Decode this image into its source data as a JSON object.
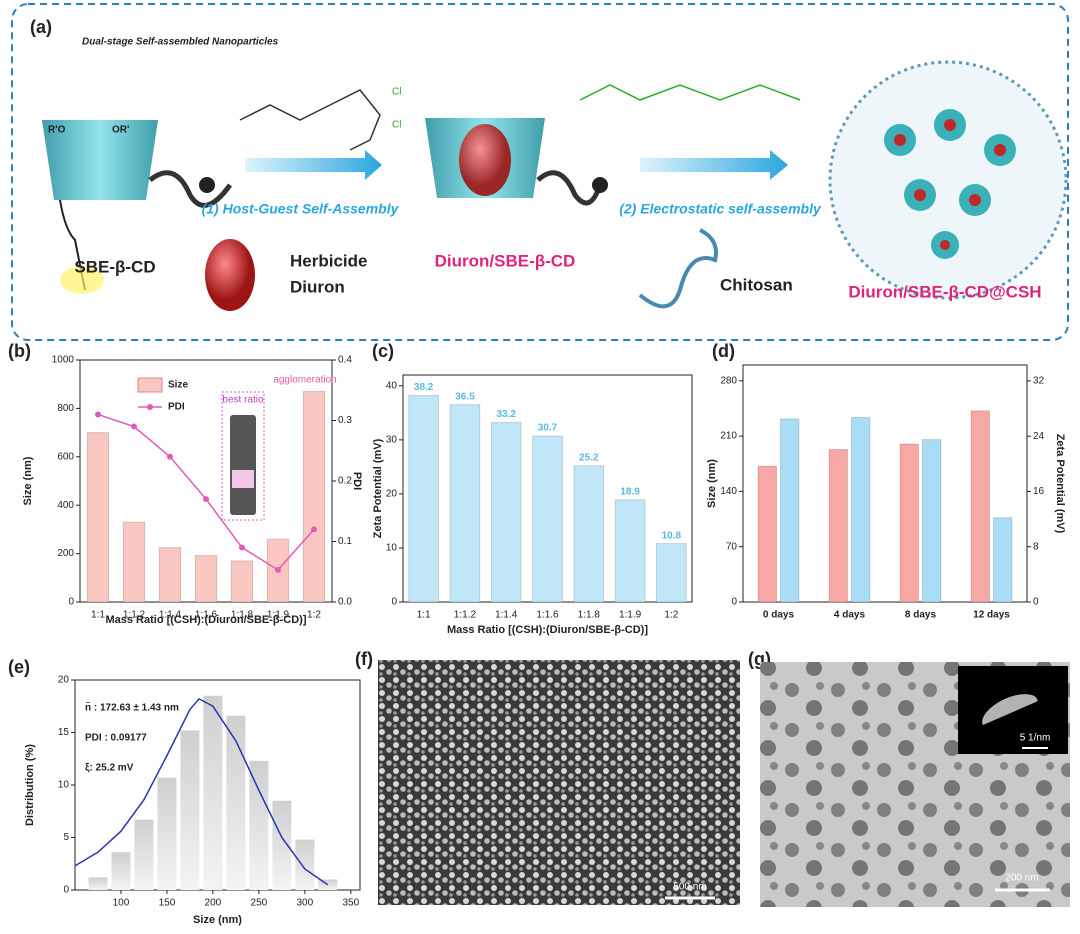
{
  "figure": {
    "panel_a": {
      "label": "(a)",
      "title": "Dual-stage Self-assembled Nanoparticles",
      "step1": "(1) Host-Guest Self-Assembly",
      "step2": "(2) Electrostatic self-assembly",
      "host": "SBE-β-CD",
      "guest_line1": "Herbicide",
      "guest_line2": "Diuron",
      "complex": "Diuron/SBE-β-CD",
      "polymer": "Chitosan",
      "product": "Diuron/SBE-β-CD@CSH",
      "cl_top": "Cl",
      "cl_bottom": "Cl",
      "ro_left": "R'O",
      "ro_right": "OR'"
    },
    "panel_f": {
      "label": "(f)",
      "scale": "500 nm"
    },
    "panel_g": {
      "label": "(g)",
      "scale": "200 nm",
      "inset_scale": "5 1/nm"
    }
  },
  "chart_data": [
    {
      "type": "bar_line",
      "label": "(b)",
      "xlabel": "Mass Ratio [(CSH):(Diuron/SBE-β-CD)]",
      "ylabel": "Size (nm)",
      "y2label": "PDI",
      "categories": [
        "1:1",
        "1:1.2",
        "1:1.4",
        "1:1.6",
        "1:1.8",
        "1:1.9",
        "1:2"
      ],
      "series": [
        {
          "name": "Size",
          "color": "#f9c6c2",
          "values": [
            700,
            330,
            225,
            192,
            170,
            260,
            870
          ]
        },
        {
          "name": "PDI",
          "color": "#e05cb8",
          "axis": "y2",
          "values": [
            0.31,
            0.29,
            0.24,
            0.17,
            0.09,
            0.053,
            0.12
          ]
        }
      ],
      "ylim": [
        0,
        1000
      ],
      "yticks": [
        0,
        200,
        400,
        600,
        800,
        1000
      ],
      "y2lim": [
        0,
        0.4
      ],
      "y2ticks": [
        {
          "value": 0,
          "label": "0.0"
        },
        0.1,
        0.2,
        0.3,
        0.4
      ],
      "legend": "upper left",
      "annotations": [
        "best ratio",
        "agglomeration"
      ]
    },
    {
      "type": "bar",
      "label": "(c)",
      "xlabel": "Mass Ratio [(CSH):(Diuron/SBE-β-CD)]",
      "ylabel": "Zeta Potential (mV)",
      "categories": [
        "1:1",
        "1:1.2",
        "1:1.4",
        "1:1.6",
        "1:1.8",
        "1:1.9",
        "1:2"
      ],
      "values": [
        38.2,
        36.5,
        33.2,
        30.7,
        25.2,
        18.9,
        10.8
      ],
      "color": "#bfe7f8",
      "ylim": [
        0,
        42
      ],
      "yticks": [
        0,
        10,
        20,
        30,
        40
      ]
    },
    {
      "type": "grouped_bar",
      "label": "(d)",
      "ylabel": "Size (nm)",
      "y2label": "Zeta Potential (mV)",
      "categories": [
        "0 days",
        "4 days",
        "8 days",
        "12 days"
      ],
      "series": [
        {
          "color": "#f7a7a4",
          "values": [
            172,
            193,
            200,
            242
          ]
        },
        {
          "color": "#a9dcf5",
          "axis": "y2",
          "values": [
            26.5,
            26.7,
            23.5,
            12.2
          ]
        }
      ],
      "ylim": [
        0,
        300
      ],
      "yticks": [
        0,
        70,
        140,
        210,
        280
      ],
      "y2lim": [
        0,
        34.3
      ],
      "y2ticks": [
        0,
        8,
        16,
        24,
        32
      ]
    },
    {
      "type": "histogram",
      "label": "(e)",
      "xlabel": "Size (nm)",
      "ylabel": "Distribution (%)",
      "bins": [
        62.5,
        87.5,
        112.5,
        137.5,
        162.5,
        187.5,
        212.5,
        237.5,
        262.5,
        287.5,
        312.5,
        337.5
      ],
      "values": [
        1.2,
        3.6,
        6.7,
        10.7,
        15.2,
        18.5,
        16.6,
        12.3,
        8.5,
        4.8,
        1.0
      ],
      "fit": {
        "color": "#2a35b5",
        "x": [
          50,
          75,
          100,
          125,
          150,
          175,
          185,
          200,
          225,
          250,
          275,
          300,
          325
        ],
        "values": [
          2.3,
          3.6,
          5.6,
          8.6,
          12.8,
          17.2,
          18.2,
          17.5,
          14.2,
          9.5,
          5.0,
          2.0,
          0.5
        ]
      },
      "xlim": [
        50,
        360
      ],
      "xticks": [
        100,
        150,
        200,
        250,
        300,
        350
      ],
      "ylim": [
        0,
        20
      ],
      "yticks": [
        0,
        5,
        10,
        15,
        20
      ],
      "annotations": [
        "n̄ : 172.63 ± 1.43 nm",
        "PDI : 0.09177",
        "ξ: 25.2 mV"
      ]
    }
  ]
}
